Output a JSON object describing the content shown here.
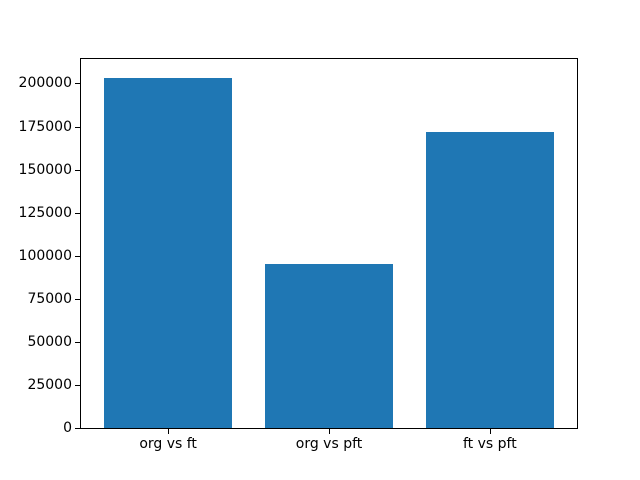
{
  "figure": {
    "background": "#ffffff"
  },
  "chart_data": {
    "type": "bar",
    "title": "",
    "xlabel": "",
    "ylabel": "",
    "categories": [
      "org vs ft",
      "org vs pft",
      "ft vs pft"
    ],
    "values": [
      203000,
      95000,
      172000
    ],
    "bar_color": "#1f77b4",
    "bar_width_fraction": 0.8,
    "xlim": [
      -0.5417,
      2.5417
    ],
    "ylim": [
      0,
      214200
    ],
    "yticks": [
      0,
      25000,
      50000,
      75000,
      100000,
      125000,
      150000,
      175000,
      200000
    ],
    "grid": false,
    "legend": "none",
    "axis_color": "#000000",
    "tick_label_color": "#000000"
  }
}
